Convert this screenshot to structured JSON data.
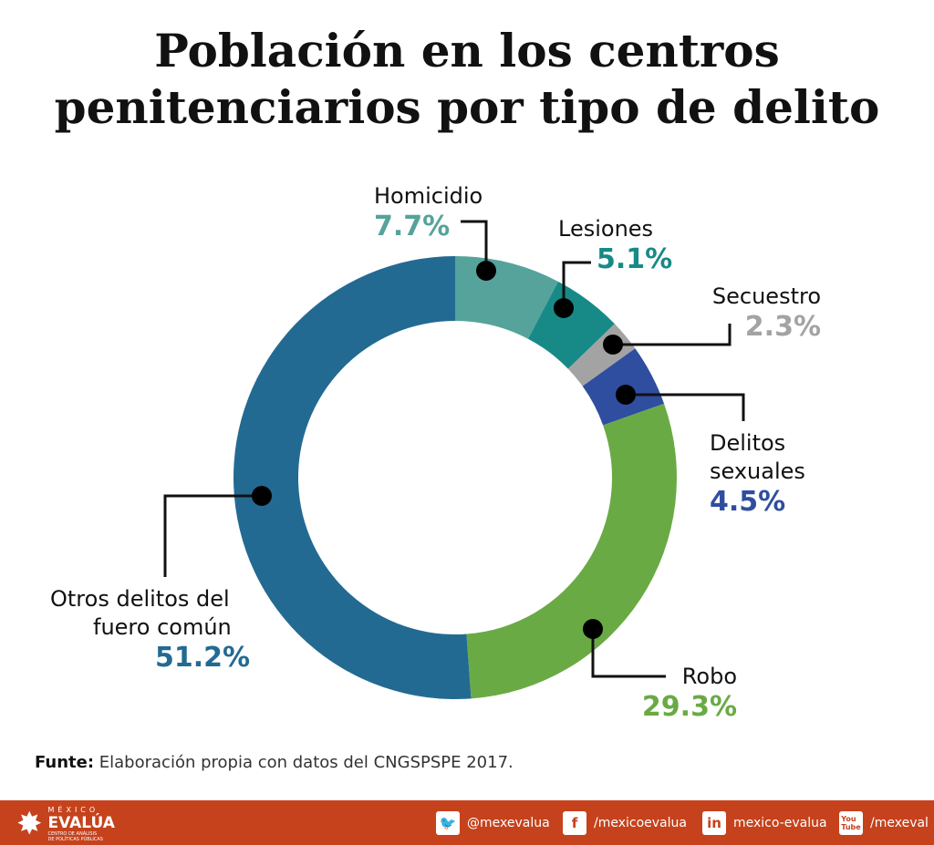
{
  "chart_data": {
    "type": "pie",
    "donut": true,
    "title": "Población en los centros penitenciarios por tipo de delito",
    "slices": [
      {
        "label": "Homicidio",
        "value": 7.7,
        "pct_label": "7.7%",
        "color": "#56a39b"
      },
      {
        "label": "Lesiones",
        "value": 5.1,
        "pct_label": "5.1%",
        "color": "#178a88"
      },
      {
        "label": "Secuestro",
        "value": 2.3,
        "pct_label": "2.3%",
        "color": "#a3a3a3"
      },
      {
        "label": "Delitos sexuales",
        "value": 4.5,
        "pct_label": "4.5%",
        "color": "#2f4ea0"
      },
      {
        "label": "Robo",
        "value": 29.3,
        "pct_label": "29.3%",
        "color": "#6aaa45"
      },
      {
        "label": "Otros delitos del fuero común",
        "value": 51.2,
        "pct_label": "51.2%",
        "color": "#236a93"
      }
    ]
  },
  "title_line1": "Población en los centros",
  "title_line2": "penitenciarios por tipo de delito",
  "labels": {
    "homicidio": "Homicidio",
    "lesiones": "Lesiones",
    "secuestro": "Secuestro",
    "sexuales1": "Delitos",
    "sexuales2": "sexuales",
    "robo": "Robo",
    "otros1": "Otros delitos del",
    "otros2": "fuero común"
  },
  "source": {
    "bold": "Funte:",
    "text": " Elaboración propia con datos del CNGSPSPE 2017."
  },
  "footer": {
    "logo_top": "MÉXICO",
    "logo_main": "EVALÚA",
    "logo_sub1": "CENTRO DE ANÁLISIS",
    "logo_sub2": "DE POLÍTICAS PÚBLICAS",
    "twitter": "@mexevalua",
    "facebook": "/mexicoevalua",
    "linkedin": "mexico-evalua",
    "youtube": "/mexeval",
    "color": "#c5421c"
  }
}
